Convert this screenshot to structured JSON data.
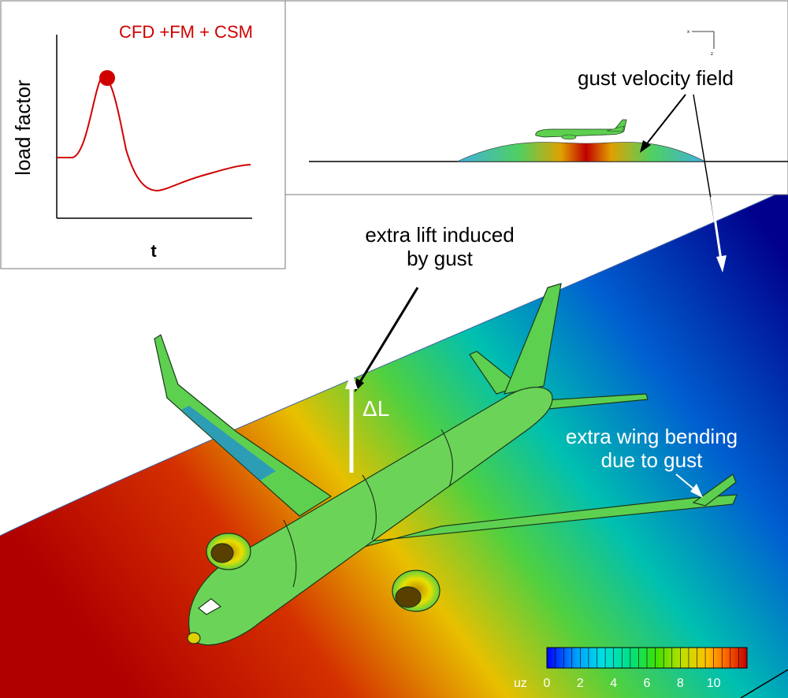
{
  "inset_plot": {
    "legend": "CFD +FM + CSM",
    "ylabel": "load factor",
    "xlabel": "t"
  },
  "top_view": {
    "gust_label": "gust velocity field",
    "axis_x": "x",
    "axis_z": "z"
  },
  "annotations": {
    "lift_label_line1": "extra lift induced",
    "lift_label_line2": "by gust",
    "delta_L": "ΔL",
    "bending_line1": "extra wing bending",
    "bending_line2": "due to gust"
  },
  "colorbar": {
    "variable": "uz",
    "ticks": [
      "0",
      "2",
      "4",
      "6",
      "8",
      "10"
    ],
    "colors": [
      "#0000ff",
      "#00a0ff",
      "#00e0e0",
      "#00e080",
      "#40e000",
      "#c0e000",
      "#ffc000",
      "#ff6000",
      "#e00000",
      "#c00000"
    ]
  },
  "colors": {
    "curve": "#d00000",
    "surface_low": "#00008c",
    "surface_high": "#c00000",
    "aircraft": "#5ed050"
  }
}
